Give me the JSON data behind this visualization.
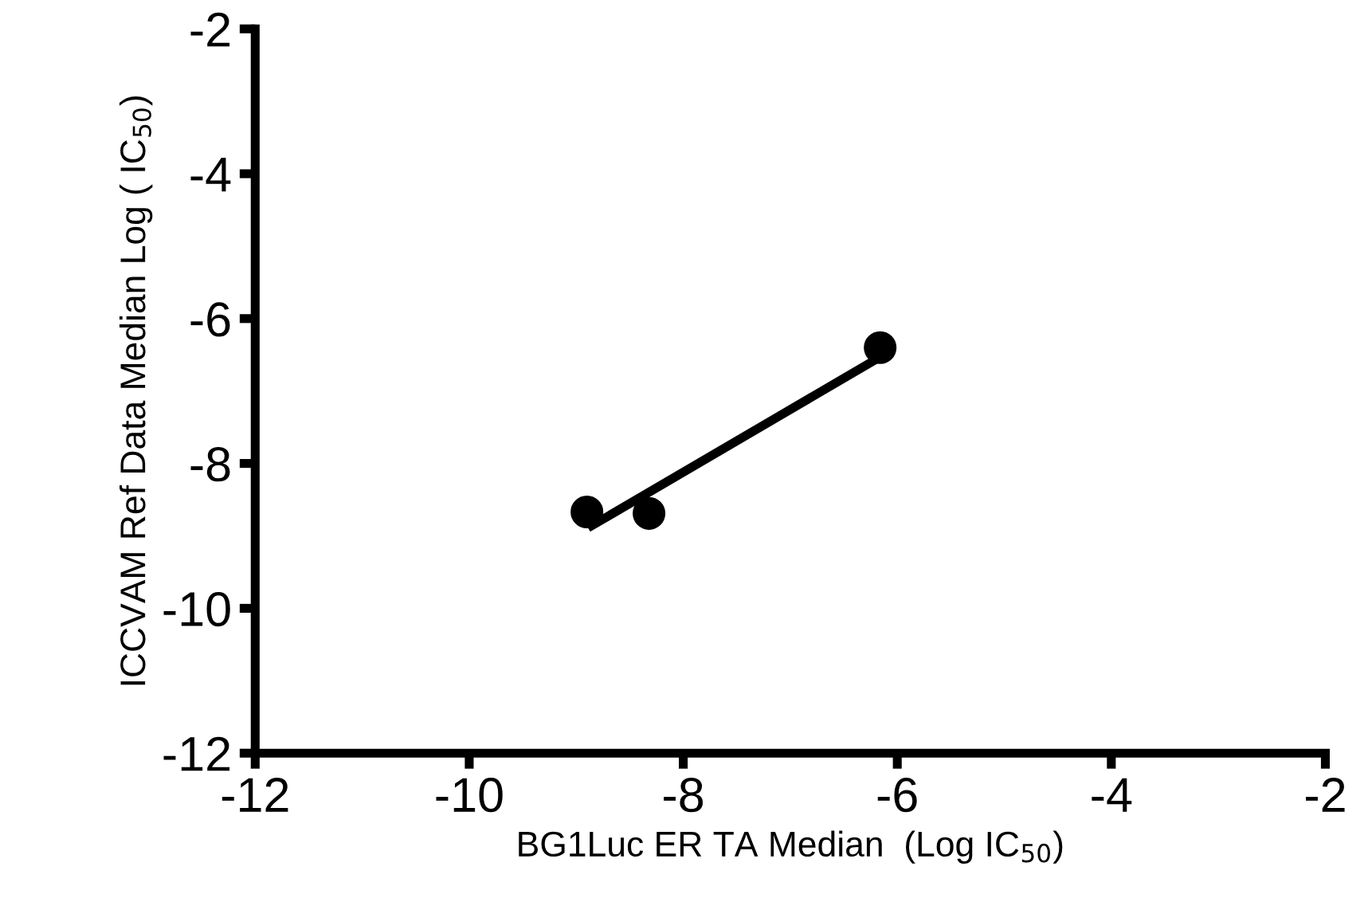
{
  "chart_data": {
    "type": "scatter",
    "xlabel": "BG1Luc ER TA Median  (Log IC$_{50}$)",
    "ylabel": "ICCVAM Ref Data Median Log ( IC$_{50}$)",
    "xlim": [
      -12,
      -2
    ],
    "ylim": [
      -12,
      -2
    ],
    "xticks": [
      -12,
      -10,
      -8,
      -6,
      -4,
      -2
    ],
    "yticks": [
      -12,
      -10,
      -8,
      -6,
      -4,
      -2
    ],
    "grid": false,
    "legend": false,
    "marker": "circle",
    "series": [
      {
        "color": "#000000",
        "x": [
          -8.9,
          -8.32,
          -6.16
        ],
        "values": [
          -8.67,
          -8.69,
          -6.4
        ]
      },
      {
        "type": "line",
        "color": "#000000",
        "x": [
          -8.89,
          -6.16
        ],
        "values": [
          -8.89,
          -6.53
        ],
        "marker": "none",
        "line_style": "solid"
      }
    ]
  }
}
